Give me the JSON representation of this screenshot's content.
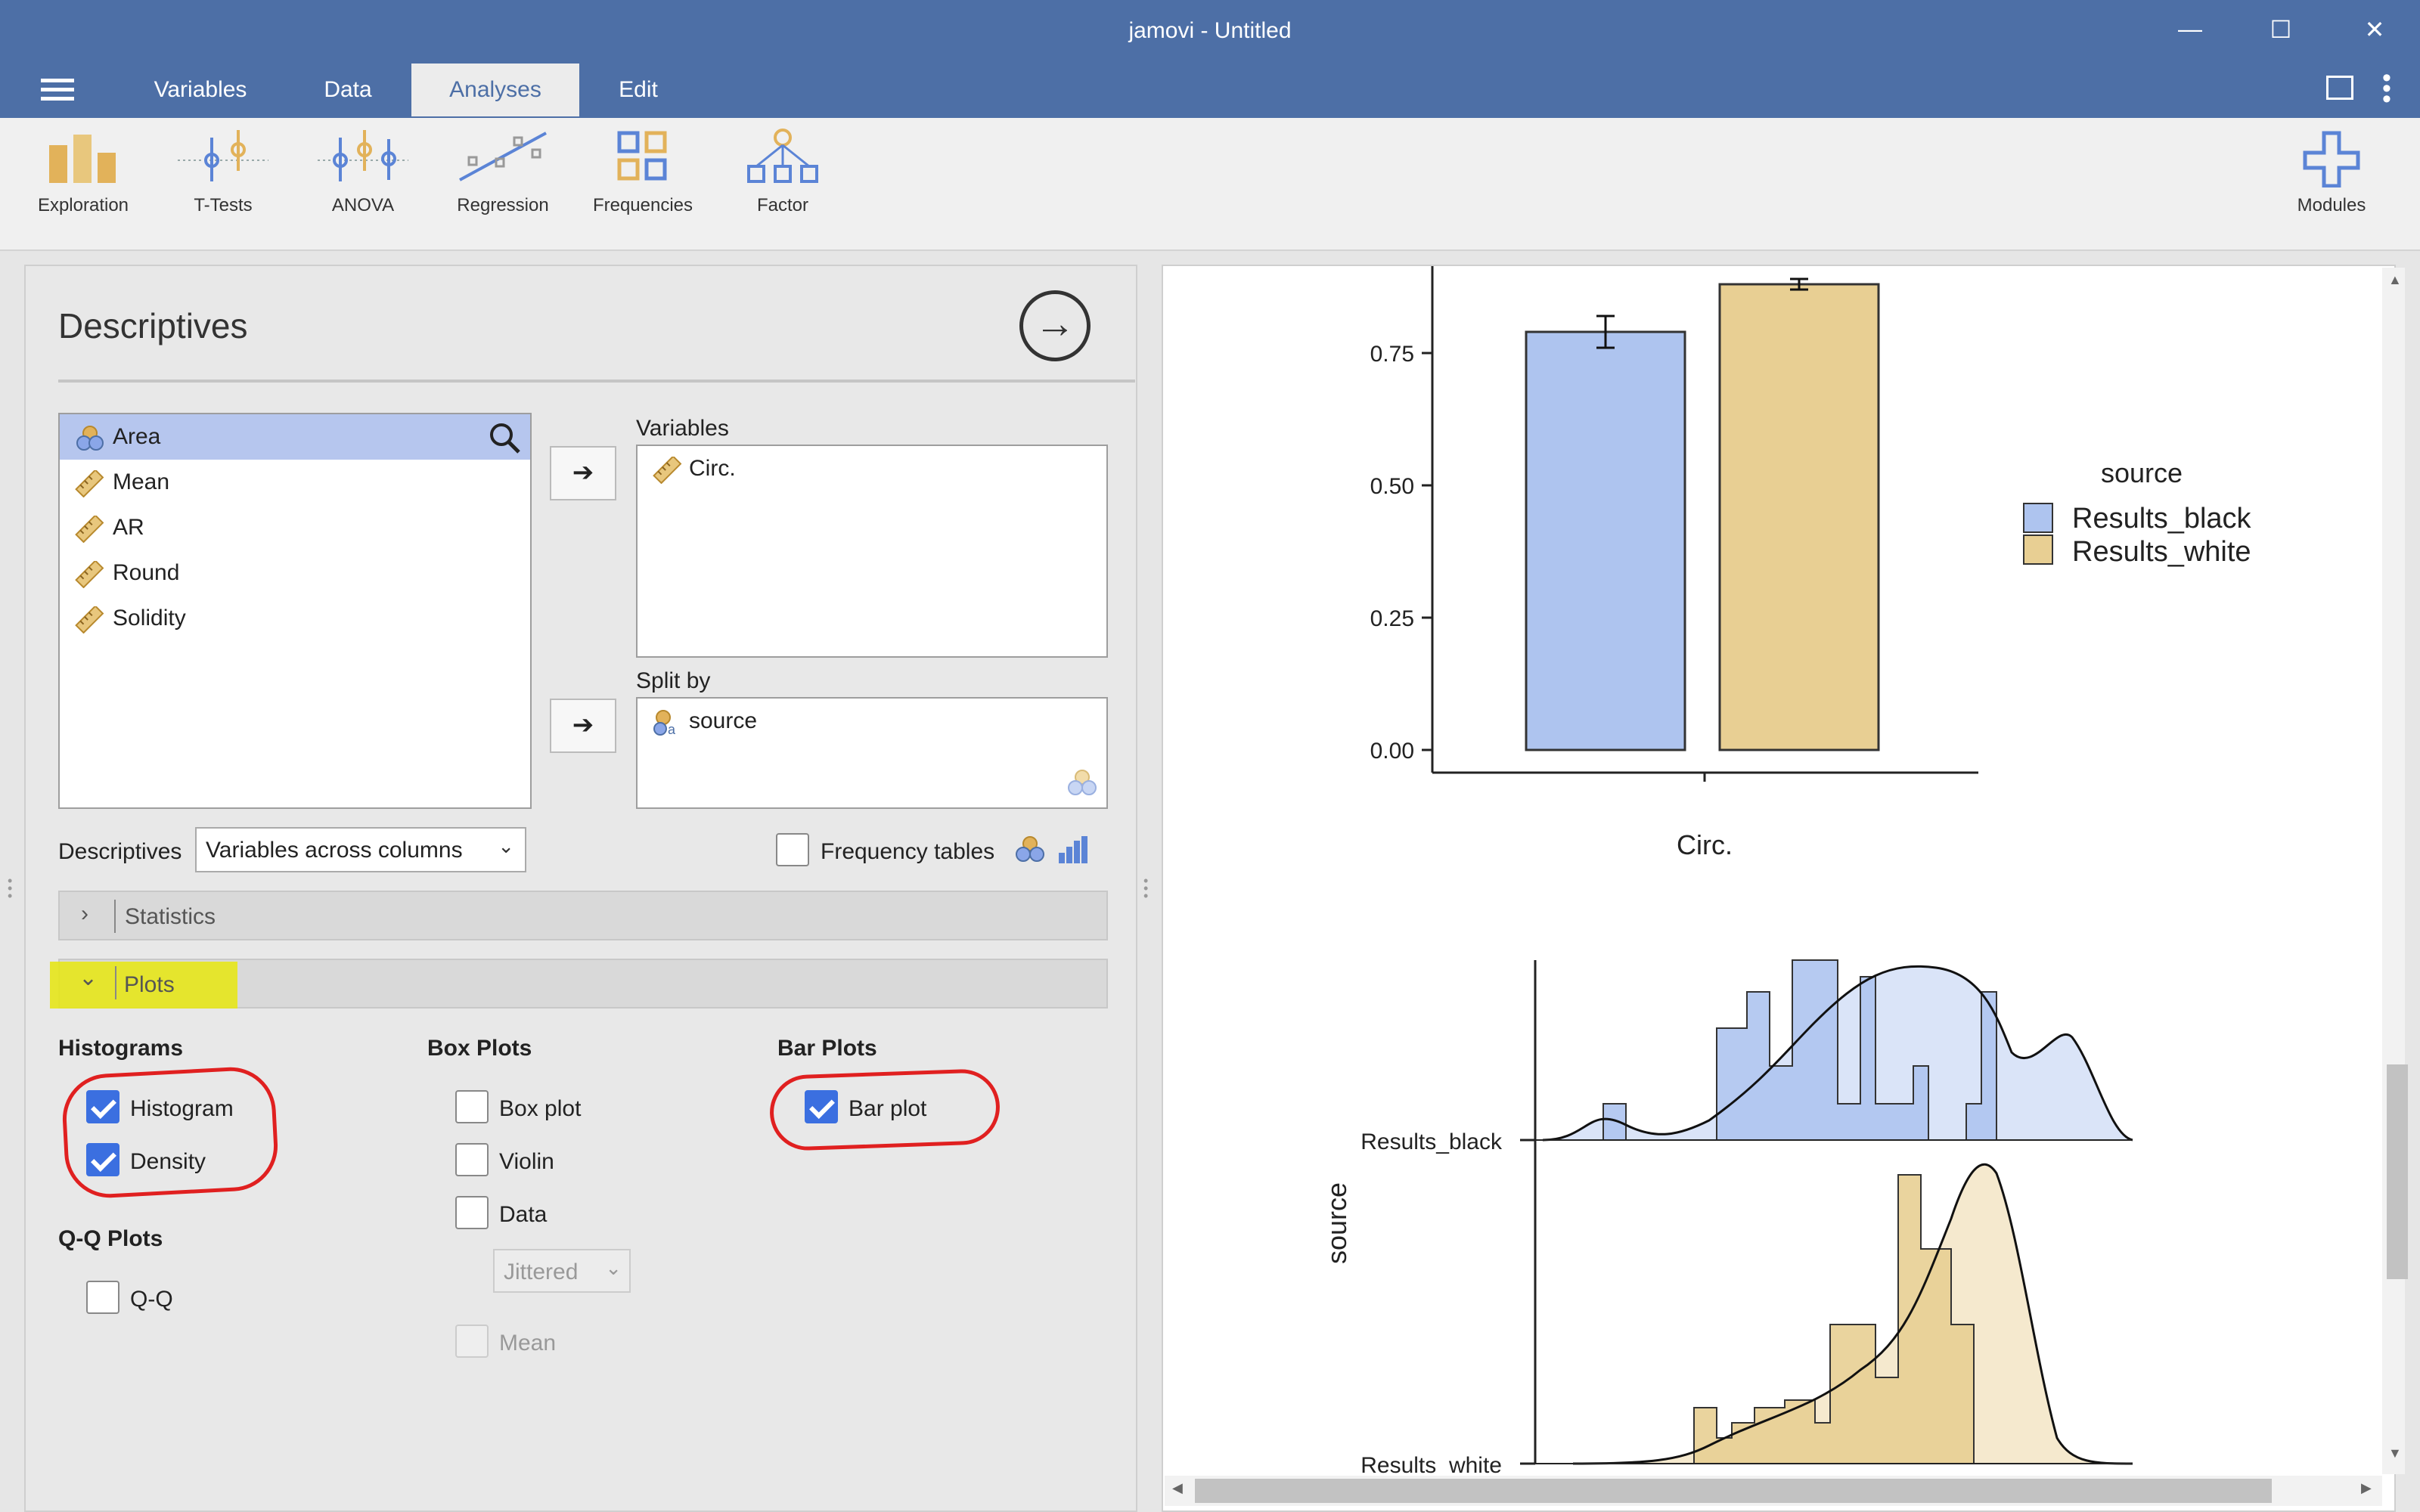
{
  "window": {
    "title": "jamovi - Untitled",
    "minimize": "—",
    "maximize": "☐",
    "close": "✕"
  },
  "menu": {
    "hamburger": "≡"
  },
  "tabs": [
    "Variables",
    "Data",
    "Analyses",
    "Edit"
  ],
  "ribbon": {
    "items": [
      "Exploration",
      "T-Tests",
      "ANOVA",
      "Regression",
      "Frequencies",
      "Factor"
    ],
    "modules": "Modules"
  },
  "descriptives": {
    "title": "Descriptives",
    "source_vars": [
      "Area",
      "Mean",
      "AR",
      "Round",
      "Solidity"
    ],
    "variables_label": "Variables",
    "variables": [
      "Circ."
    ],
    "splitby_label": "Split by",
    "splitby": [
      "source"
    ],
    "layout_label": "Descriptives",
    "layout_value": "Variables across columns",
    "freq_tables": "Frequency tables",
    "sections": {
      "statistics": "Statistics",
      "plots": "Plots"
    },
    "histograms": {
      "header": "Histograms",
      "histogram": "Histogram",
      "density": "Density"
    },
    "boxplots": {
      "header": "Box Plots",
      "box": "Box plot",
      "violin": "Violin",
      "data": "Data",
      "jitter": "Jittered",
      "mean": "Mean"
    },
    "barplots": {
      "header": "Bar Plots",
      "bar": "Bar plot"
    },
    "qq": {
      "header": "Q-Q Plots",
      "qq": "Q-Q"
    }
  },
  "colors": {
    "black": "#aec4ef",
    "white": "#e8cf93",
    "highlight": "#e6e61a",
    "accent": "#4d6fa6"
  },
  "chart_data": [
    {
      "type": "bar",
      "categories": [
        "Circ."
      ],
      "series": [
        {
          "name": "Results_black",
          "values": [
            0.79
          ],
          "err": [
            0.03
          ]
        },
        {
          "name": "Results_white",
          "values": [
            0.88
          ],
          "err": [
            0.01
          ]
        }
      ],
      "xlabel": "Circ.",
      "legend_title": "source",
      "yticks": [
        "0.00",
        "0.25",
        "0.50",
        "0.75"
      ],
      "ylim": [
        0,
        0.88
      ]
    },
    {
      "type": "area",
      "ylabel": "source",
      "categories": [
        "Results_black",
        "Results_white"
      ]
    }
  ]
}
